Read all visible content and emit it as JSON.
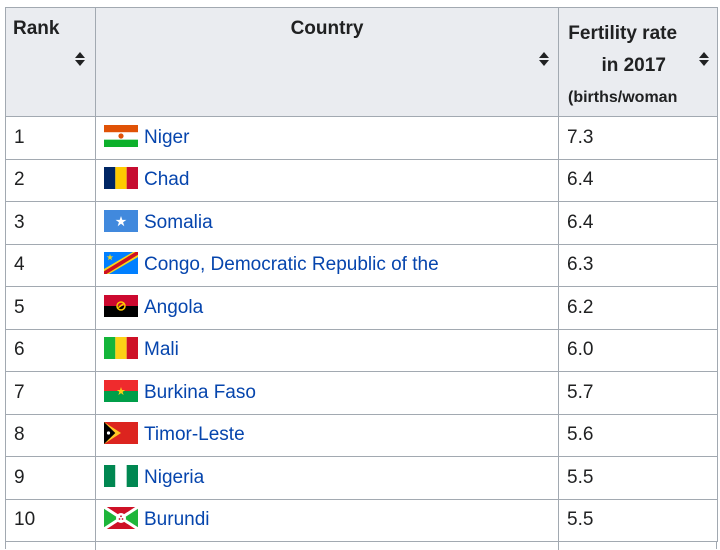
{
  "headers": {
    "rank": "Rank",
    "country": "Country",
    "fertility_line1": "Fertility rate",
    "fertility_line2": "in 2017",
    "fertility_line3": "(births/woman"
  },
  "rows": [
    {
      "rank": "1",
      "country": "Niger",
      "flag": "niger-flag-icon",
      "value": "7.3"
    },
    {
      "rank": "2",
      "country": "Chad",
      "flag": "chad-flag-icon",
      "value": "6.4"
    },
    {
      "rank": "3",
      "country": "Somalia",
      "flag": "somalia-flag-icon",
      "value": "6.4"
    },
    {
      "rank": "4",
      "country": "Congo, Democratic Republic of the",
      "flag": "dr-congo-flag-icon",
      "value": "6.3"
    },
    {
      "rank": "5",
      "country": "Angola",
      "flag": "angola-flag-icon",
      "value": "6.2"
    },
    {
      "rank": "6",
      "country": "Mali",
      "flag": "mali-flag-icon",
      "value": "6.0"
    },
    {
      "rank": "7",
      "country": "Burkina Faso",
      "flag": "burkina-faso-flag-icon",
      "value": "5.7"
    },
    {
      "rank": "8",
      "country": "Timor-Leste",
      "flag": "timor-leste-flag-icon",
      "value": "5.6"
    },
    {
      "rank": "9",
      "country": "Nigeria",
      "flag": "nigeria-flag-icon",
      "value": "5.5"
    },
    {
      "rank": "10",
      "country": "Burundi",
      "flag": "burundi-flag-icon",
      "value": "5.5"
    }
  ],
  "colors": {
    "link": "#0645ad",
    "header_bg": "#eaecf0",
    "border": "#a2a9b1"
  }
}
